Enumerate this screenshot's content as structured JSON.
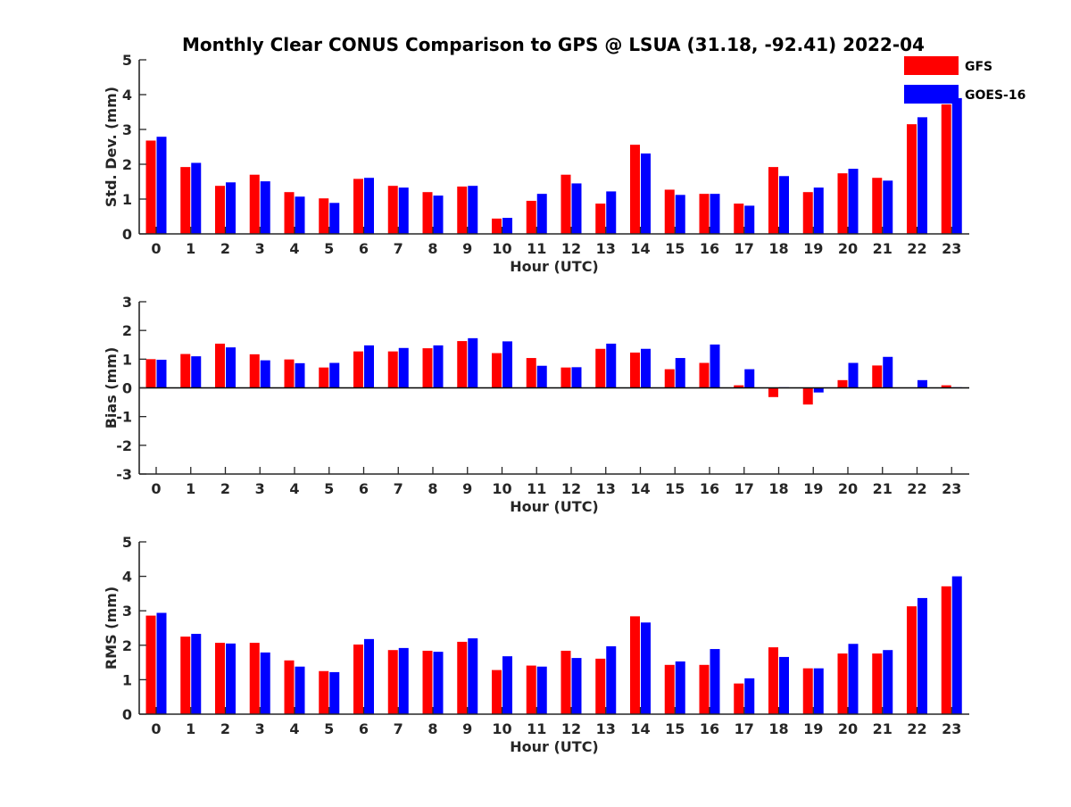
{
  "title": "Monthly Clear CONUS Comparison to GPS @ LSUA (31.18, -92.41) 2022-04",
  "legend": {
    "placement": "top-right",
    "entries": [
      {
        "label": "GFS",
        "color": "#ff0000"
      },
      {
        "label": "GOES-16",
        "color": "#0000ff"
      }
    ]
  },
  "chart_data": [
    {
      "type": "bar",
      "xlabel": "Hour (UTC)",
      "ylabel": "Std. Dev. (mm)",
      "ylim": [
        0,
        5
      ],
      "yticks": [
        "0",
        "1",
        "2",
        "3",
        "4",
        "5"
      ],
      "categories": [
        "0",
        "1",
        "2",
        "3",
        "4",
        "5",
        "6",
        "7",
        "8",
        "9",
        "10",
        "11",
        "12",
        "13",
        "14",
        "15",
        "16",
        "17",
        "18",
        "19",
        "20",
        "21",
        "22",
        "23"
      ],
      "series": [
        {
          "name": "GFS",
          "color": "#ff0000",
          "values": [
            2.68,
            1.92,
            1.38,
            1.7,
            1.2,
            1.02,
            1.58,
            1.38,
            1.2,
            1.36,
            0.44,
            0.95,
            1.7,
            0.87,
            2.56,
            1.27,
            1.15,
            0.87,
            1.92,
            1.2,
            1.74,
            1.61,
            3.15,
            3.72
          ]
        },
        {
          "name": "GOES-16",
          "color": "#0000ff",
          "values": [
            2.79,
            2.04,
            1.48,
            1.51,
            1.07,
            0.89,
            1.61,
            1.33,
            1.1,
            1.38,
            0.46,
            1.15,
            1.45,
            1.22,
            2.31,
            1.12,
            1.15,
            0.81,
            1.66,
            1.33,
            1.87,
            1.53,
            3.35,
            3.9
          ]
        }
      ]
    },
    {
      "type": "bar",
      "xlabel": "Hour (UTC)",
      "ylabel": "Bias (mm)",
      "ylim": [
        -3,
        3
      ],
      "yticks": [
        "-3",
        "-2",
        "-1",
        "0",
        "1",
        "2",
        "3"
      ],
      "categories": [
        "0",
        "1",
        "2",
        "3",
        "4",
        "5",
        "6",
        "7",
        "8",
        "9",
        "10",
        "11",
        "12",
        "13",
        "14",
        "15",
        "16",
        "17",
        "18",
        "19",
        "20",
        "21",
        "22",
        "23"
      ],
      "series": [
        {
          "name": "GFS",
          "color": "#ff0000",
          "values": [
            1.0,
            1.18,
            1.54,
            1.17,
            0.99,
            0.71,
            1.27,
            1.27,
            1.38,
            1.63,
            1.21,
            1.04,
            0.71,
            1.36,
            1.23,
            0.65,
            0.87,
            0.09,
            -0.32,
            -0.58,
            0.27,
            0.78,
            0.0,
            0.09
          ]
        },
        {
          "name": "GOES-16",
          "color": "#0000ff",
          "values": [
            0.98,
            1.1,
            1.41,
            0.96,
            0.86,
            0.87,
            1.48,
            1.39,
            1.48,
            1.73,
            1.62,
            0.77,
            0.72,
            1.54,
            1.36,
            1.04,
            1.51,
            0.65,
            0.02,
            -0.16,
            0.87,
            1.08,
            0.27,
            0.02
          ]
        }
      ]
    },
    {
      "type": "bar",
      "xlabel": "Hour (UTC)",
      "ylabel": "RMS (mm)",
      "ylim": [
        0,
        5
      ],
      "yticks": [
        "0",
        "1",
        "2",
        "3",
        "4",
        "5"
      ],
      "categories": [
        "0",
        "1",
        "2",
        "3",
        "4",
        "5",
        "6",
        "7",
        "8",
        "9",
        "10",
        "11",
        "12",
        "13",
        "14",
        "15",
        "16",
        "17",
        "18",
        "19",
        "20",
        "21",
        "22",
        "23"
      ],
      "series": [
        {
          "name": "GFS",
          "color": "#ff0000",
          "values": [
            2.86,
            2.25,
            2.07,
            2.07,
            1.56,
            1.25,
            2.02,
            1.86,
            1.84,
            2.1,
            1.28,
            1.41,
            1.84,
            1.61,
            2.84,
            1.43,
            1.43,
            0.89,
            1.94,
            1.33,
            1.76,
            1.76,
            3.13,
            3.71
          ]
        },
        {
          "name": "GOES-16",
          "color": "#0000ff",
          "values": [
            2.94,
            2.33,
            2.05,
            1.79,
            1.38,
            1.22,
            2.18,
            1.92,
            1.81,
            2.2,
            1.68,
            1.38,
            1.63,
            1.97,
            2.66,
            1.53,
            1.89,
            1.04,
            1.66,
            1.33,
            2.04,
            1.86,
            3.37,
            4.0
          ]
        }
      ]
    }
  ]
}
